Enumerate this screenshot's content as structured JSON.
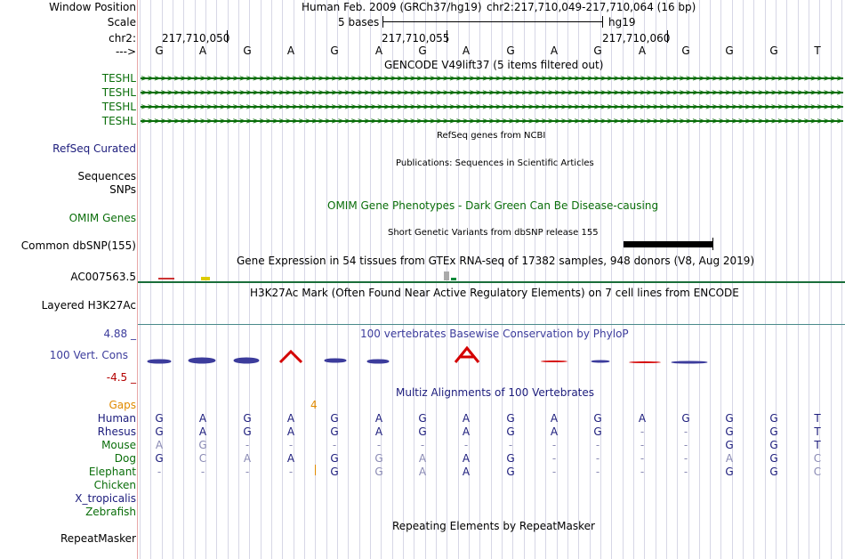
{
  "header": {
    "window_position_label": "Window Position",
    "scale_label": "Scale",
    "chrom_label": "chr2:",
    "strand_label": "--->",
    "assembly": "Human Feb. 2009 (GRCh37/hg19)",
    "position": "chr2:217,710,049-217,710,064 (16 bp)",
    "scale_text": "5 bases",
    "scale_db": "hg19",
    "coords": [
      "217,710,050",
      "217,710,055",
      "217,710,060"
    ]
  },
  "sequence": [
    "G",
    "A",
    "G",
    "A",
    "G",
    "A",
    "G",
    "A",
    "G",
    "A",
    "G",
    "A",
    "G",
    "G",
    "G",
    "T"
  ],
  "tracks": {
    "gencode": {
      "title": "GENCODE V49lift37 (5 items filtered out)",
      "items": [
        "TESHL",
        "TESHL",
        "TESHL",
        "TESHL"
      ]
    },
    "refseq": {
      "label": "RefSeq Curated",
      "title": "RefSeq genes from NCBI"
    },
    "publications": {
      "label1": "Sequences",
      "label2": "SNPs",
      "title": "Publications: Sequences in Scientific Articles"
    },
    "omim": {
      "label": "OMIM Genes",
      "title": "OMIM Gene Phenotypes - Dark Green Can Be Disease-causing"
    },
    "dbsnp": {
      "label": "Common dbSNP(155)",
      "title": "Short Genetic Variants from dbSNP release 155"
    },
    "gtex": {
      "label": "AC007563.5",
      "title": "Gene Expression in 54 tissues from GTEx RNA-seq of 17382 samples, 948 donors (V8, Aug 2019)"
    },
    "h3k27ac": {
      "label": "Layered H3K27Ac",
      "title": "H3K27Ac Mark (Often Found Near Active Regulatory Elements) on 7 cell lines from ENCODE"
    },
    "conservation": {
      "label": "100 Vert. Cons",
      "max": "4.88 _",
      "min": "-4.5 _",
      "title": "100 vertebrates Basewise Conservation by PhyloP"
    },
    "multiz": {
      "title": "Multiz Alignments of 100 Vertebrates",
      "gaps_label": "Gaps",
      "gap_count": "4",
      "species": [
        {
          "name": "Human",
          "bases": [
            "G",
            "A",
            "G",
            "A",
            "G",
            "A",
            "G",
            "A",
            "G",
            "A",
            "G",
            "A",
            "G",
            "G",
            "G",
            "T"
          ]
        },
        {
          "name": "Rhesus",
          "bases": [
            "G",
            "A",
            "G",
            "A",
            "G",
            "A",
            "G",
            "A",
            "G",
            "A",
            "G",
            "-",
            "-",
            "G",
            "G",
            "T"
          ]
        },
        {
          "name": "Mouse",
          "bases": [
            "A",
            "G",
            "-",
            "-",
            "-",
            "-",
            "-",
            "-",
            "-",
            "-",
            "-",
            "-",
            "-",
            "G",
            "G",
            "T"
          ]
        },
        {
          "name": "Dog",
          "bases": [
            "G",
            "C",
            "A",
            "A",
            "G",
            "G",
            "A",
            "A",
            "G",
            "-",
            "-",
            "-",
            "-",
            "A",
            "G",
            "C"
          ]
        },
        {
          "name": "Elephant",
          "bases": [
            "-",
            "-",
            "-",
            "-",
            "G",
            "G",
            "A",
            "A",
            "G",
            "-",
            "-",
            "-",
            "-",
            "G",
            "G",
            "C"
          ]
        },
        {
          "name": "Chicken",
          "bases": []
        },
        {
          "name": "X_tropicalis",
          "bases": []
        },
        {
          "name": "Zebrafish",
          "bases": []
        }
      ]
    },
    "repeatmasker": {
      "label": "RepeatMasker",
      "title": "Repeating Elements by RepeatMasker"
    }
  },
  "colors": {
    "gencode_green": "#0a6e0a",
    "refseq_blue": "#1c1c7c",
    "omim_green": "#0a6e0a",
    "cons_blue": "#3c3c9c",
    "cons_red": "#b40000",
    "gaps_orange": "#e08a00",
    "grid": "#d7d7e6"
  }
}
